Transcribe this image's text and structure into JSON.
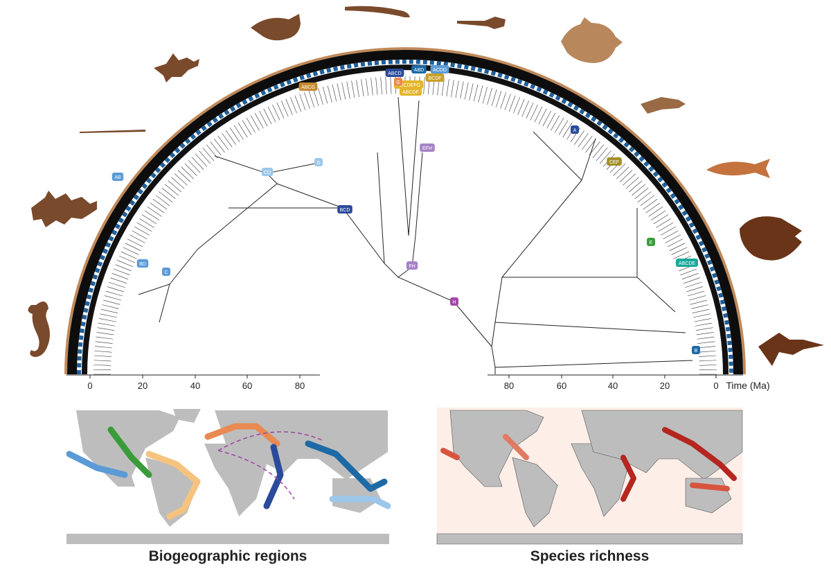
{
  "axes": {
    "left_ticks": [
      "0",
      "20",
      "40",
      "60",
      "80"
    ],
    "right_ticks": [
      "80",
      "60",
      "40",
      "20",
      "0"
    ],
    "time_label": "Time (Ma)"
  },
  "tree_node_labels": [
    "ABCG",
    "AB",
    "BCD",
    "ABCD",
    "ABD",
    "ABCDEFG",
    "ABCDF",
    "BCDF",
    "ACDD",
    "CEF",
    "ABCDE",
    "EFH",
    "FH",
    "H",
    "CD",
    "BD",
    "B",
    "A",
    "C",
    "D",
    "E",
    "G"
  ],
  "region_colors": {
    "A": "#2a4b9b",
    "B": "#1d6aa5",
    "C": "#5b9bd5",
    "D": "#9cc7ea",
    "E": "#3a9b3a",
    "F": "#f6c37e",
    "G": "#e88a52",
    "H": "#a04aa6",
    "red": "#cc2c2c"
  },
  "silhouette_color": "#7a4a2c",
  "maps": {
    "left_caption": "Biogeographic regions",
    "right_caption": "Species richness"
  }
}
